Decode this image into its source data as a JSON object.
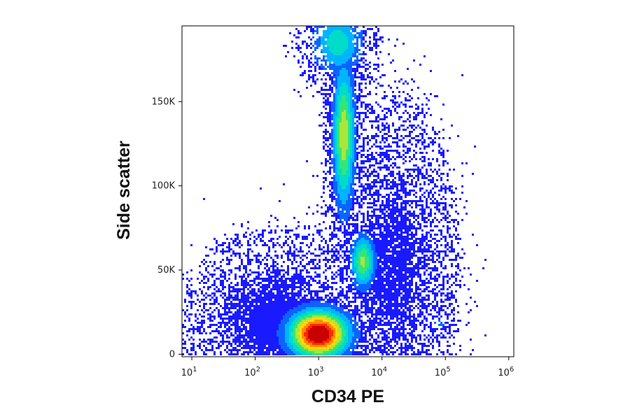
{
  "chart_data": {
    "type": "scatter",
    "subtype": "flow-cytometry-density-dot-plot",
    "title": "",
    "xlabel": "CD34 PE",
    "ylabel": "Side scatter",
    "x_scale": "log",
    "xlim": [
      7,
      1200000
    ],
    "ylim": [
      -1500,
      195000
    ],
    "x_ticks": [
      {
        "value": 10,
        "base": "10",
        "exp": "1"
      },
      {
        "value": 100,
        "base": "10",
        "exp": "2"
      },
      {
        "value": 1000,
        "base": "10",
        "exp": "3"
      },
      {
        "value": 10000,
        "base": "10",
        "exp": "4"
      },
      {
        "value": 100000,
        "base": "10",
        "exp": "5"
      },
      {
        "value": 1000000,
        "base": "10",
        "exp": "6"
      }
    ],
    "y_ticks": [
      {
        "value": 0,
        "label": "0"
      },
      {
        "value": 50000,
        "label": "50K"
      },
      {
        "value": 100000,
        "label": "100K"
      },
      {
        "value": 150000,
        "label": "150K"
      }
    ],
    "colormap": [
      "#1a1aff",
      "#0a64ff",
      "#00b4ff",
      "#00dcc8",
      "#32e67d",
      "#aae63c",
      "#ffdc00",
      "#ff8c00",
      "#ff2800",
      "#c80000"
    ],
    "populations": [
      {
        "x": 1000,
        "y": 12000,
        "sx_log": 0.3,
        "sy": 9000,
        "weight": 2.2,
        "peak": 1.0
      },
      {
        "x": 2500,
        "y": 130000,
        "sx_log": 0.11,
        "sy": 28000,
        "weight": 1.6,
        "peak": 0.55
      },
      {
        "x": 5000,
        "y": 55000,
        "sx_log": 0.12,
        "sy": 10000,
        "weight": 0.7,
        "peak": 0.5
      },
      {
        "x": 80000,
        "y": 18000,
        "sx_log": 0.12,
        "sy": 4500,
        "weight": 0.12,
        "peak": 0.12
      },
      {
        "x": 200,
        "y": 20000,
        "sx_log": 0.55,
        "sy": 20000,
        "weight": 0.6,
        "peak": 0.05
      },
      {
        "x": 15000,
        "y": 50000,
        "sx_log": 0.4,
        "sy": 40000,
        "weight": 0.5,
        "peak": 0.05
      },
      {
        "x": 2000,
        "y": 185000,
        "sx_log": 0.25,
        "sy": 12000,
        "weight": 0.6,
        "peak": 0.35
      }
    ],
    "grid": false,
    "legend": "none"
  }
}
